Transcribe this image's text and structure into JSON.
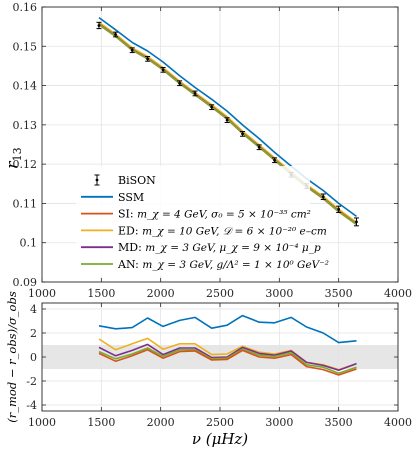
{
  "colors": {
    "BiSON": "#000000",
    "SSM": "#0072BD",
    "SI": "#D95319",
    "ED": "#EDB120",
    "MD": "#7E2F8E",
    "AN": "#77AC30",
    "band": "#e6e6e6",
    "grid": "#e3e3e3"
  },
  "chart_data": [
    {
      "type": "line",
      "xlim": [
        1000,
        4000
      ],
      "ylim": [
        0.09,
        0.16
      ],
      "xticks": [
        "1000",
        "1500",
        "2000",
        "2500",
        "3000",
        "3500",
        "4000"
      ],
      "yticks": [
        "0.09",
        "0.1",
        "0.11",
        "0.12",
        "0.13",
        "0.14",
        "0.15",
        "0.16"
      ],
      "ylabel": "r",
      "ylabel_sub": "13",
      "grid": true,
      "legend_position": "bottom-left",
      "x": [
        1480,
        1620,
        1760,
        1890,
        2020,
        2160,
        2290,
        2430,
        2560,
        2690,
        2830,
        2960,
        3100,
        3230,
        3370,
        3500,
        3650
      ],
      "series": [
        {
          "key": "BiSON",
          "name": "BiSON",
          "values": [
            0.1553,
            0.153,
            0.149,
            0.1468,
            0.144,
            0.1406,
            0.138,
            0.1345,
            0.1312,
            0.1277,
            0.1243,
            0.121,
            0.1173,
            0.1144,
            0.1117,
            0.1085,
            0.1053
          ],
          "errors": [
            0.0008,
            0.0006,
            0.0006,
            0.0006,
            0.0006,
            0.0006,
            0.0006,
            0.0006,
            0.0006,
            0.0006,
            0.0006,
            0.0006,
            0.0006,
            0.0006,
            0.0007,
            0.0008,
            0.001
          ]
        },
        {
          "key": "SSM",
          "name": "SSM",
          "values": [
            0.1573,
            0.1542,
            0.151,
            0.1488,
            0.146,
            0.1425,
            0.1395,
            0.1365,
            0.1335,
            0.13,
            0.1265,
            0.123,
            0.1195,
            0.1163,
            0.1133,
            0.11,
            0.1067
          ]
        },
        {
          "key": "SI",
          "name": "SI: ",
          "math": "m_χ = 4 GeV,  σ₀ = 5 × 10⁻³⁵ cm²",
          "values": [
            0.1555,
            0.1525,
            0.149,
            0.1468,
            0.144,
            0.1405,
            0.1376,
            0.1345,
            0.1315,
            0.1278,
            0.1243,
            0.121,
            0.1174,
            0.1142,
            0.1112,
            0.1079,
            0.1046
          ]
        },
        {
          "key": "ED",
          "name": "ED: ",
          "math": "m_χ = 10 GeV,  𝒟 = 6 × 10⁻²⁰ e–cm",
          "values": [
            0.1561,
            0.1531,
            0.1496,
            0.1474,
            0.1446,
            0.1411,
            0.1382,
            0.1351,
            0.1321,
            0.1284,
            0.1249,
            0.1216,
            0.118,
            0.1148,
            0.1118,
            0.1085,
            0.1052
          ]
        },
        {
          "key": "MD",
          "name": "MD: ",
          "math": "m_χ = 3 GeV,  μ_χ = 9 × 10⁻⁴ μ_p",
          "values": [
            0.1557,
            0.1527,
            0.1492,
            0.147,
            0.1442,
            0.1407,
            0.1378,
            0.1347,
            0.1317,
            0.128,
            0.1245,
            0.1212,
            0.1176,
            0.1144,
            0.1114,
            0.1081,
            0.1048
          ]
        },
        {
          "key": "AN",
          "name": "AN: ",
          "math": "m_χ = 3 GeV,  g/Λ² = 1 × 10⁰ GeV⁻²",
          "values": [
            0.1556,
            0.1526,
            0.1491,
            0.1469,
            0.1441,
            0.1406,
            0.1377,
            0.1346,
            0.1316,
            0.1279,
            0.1244,
            0.1211,
            0.1175,
            0.1143,
            0.1113,
            0.108,
            0.1047
          ]
        }
      ]
    },
    {
      "type": "line",
      "xlim": [
        1000,
        4000
      ],
      "ylim": [
        -4.5,
        4.5
      ],
      "xticks": [
        "1000",
        "1500",
        "2000",
        "2500",
        "3000",
        "3500",
        "4000"
      ],
      "yticks": [
        "-4",
        "-2",
        "0",
        "2",
        "4"
      ],
      "band": [
        -1,
        1
      ],
      "ylabel": "(r_mod − r_obs)/σ_obs",
      "xlabel": "ν (μHz)",
      "grid": true,
      "x": [
        1480,
        1620,
        1760,
        1890,
        2020,
        2160,
        2290,
        2430,
        2560,
        2690,
        2830,
        2960,
        3100,
        3230,
        3370,
        3500,
        3650
      ],
      "series": [
        {
          "key": "SSM",
          "values": [
            2.6,
            2.35,
            2.45,
            3.25,
            2.55,
            3.05,
            3.3,
            2.4,
            2.65,
            3.45,
            2.9,
            2.85,
            3.3,
            2.5,
            2.0,
            1.2,
            1.35
          ]
        },
        {
          "key": "ED",
          "values": [
            1.5,
            0.6,
            1.1,
            1.55,
            0.65,
            1.1,
            1.1,
            0.2,
            0.25,
            0.9,
            0.4,
            0.25,
            0.55,
            -0.45,
            -0.65,
            -1.05,
            -0.55
          ]
        },
        {
          "key": "MD",
          "values": [
            0.8,
            0.1,
            0.55,
            1.05,
            0.2,
            0.75,
            0.75,
            -0.05,
            0.0,
            0.8,
            0.3,
            0.15,
            0.5,
            -0.45,
            -0.7,
            -1.1,
            -0.55
          ]
        },
        {
          "key": "AN",
          "values": [
            0.45,
            -0.15,
            0.25,
            0.75,
            0.05,
            0.6,
            0.6,
            -0.15,
            -0.1,
            0.65,
            0.15,
            0.05,
            0.35,
            -0.65,
            -0.85,
            -1.35,
            -0.85
          ]
        },
        {
          "key": "SI",
          "values": [
            0.3,
            -0.35,
            0.1,
            0.6,
            -0.1,
            0.45,
            0.5,
            -0.25,
            -0.2,
            0.55,
            0.0,
            -0.1,
            0.2,
            -0.8,
            -1.05,
            -1.5,
            -1.0
          ]
        }
      ]
    }
  ]
}
